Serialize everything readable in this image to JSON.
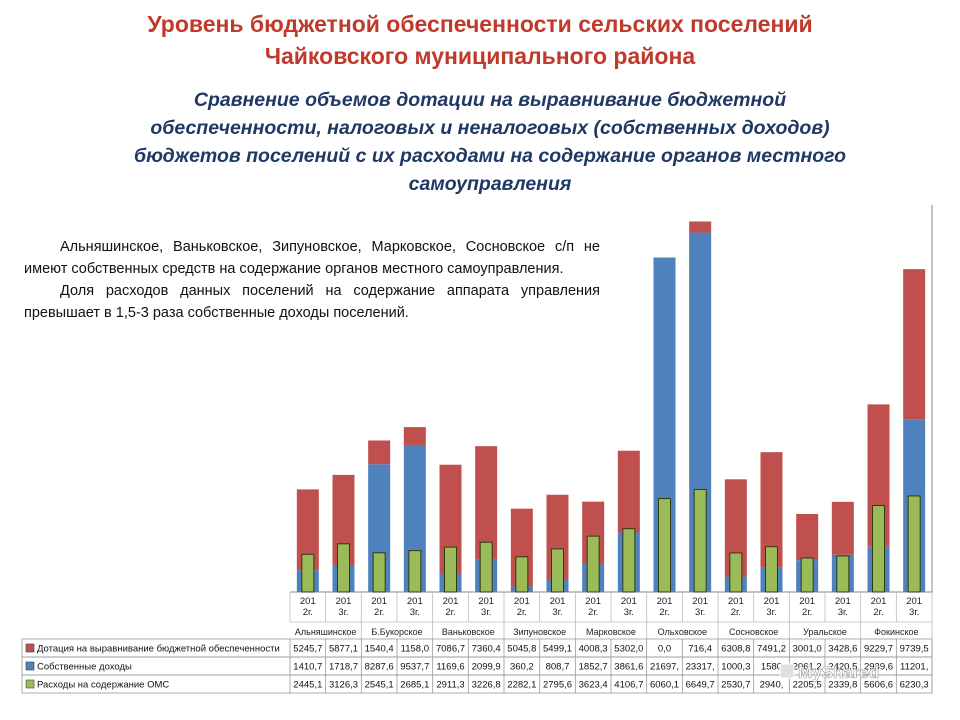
{
  "header": {
    "title_line1": "Уровень бюджетной обеспеченности сельских поселений",
    "title_line2": "Чайковского муниципального района",
    "subtitle_line1": "Сравнение объемов дотации на выравнивание бюджетной",
    "subtitle_line2": "обеспеченности, налоговых и неналоговых (собственных доходов)",
    "subtitle_line3": "бюджетов поселений с их расходами на содержание органов местного",
    "subtitle_line4": "самоуправления"
  },
  "note": {
    "paragraph1": "Альняшинское, Ваньковское, Зипуновское, Марковское, Сосновское с/п не имеют собственных средств на содержание органов местного самоуправления.",
    "paragraph2": "Доля расходов данных поселений на содержание аппарата управления превышает в 1,5-3 раза собственные доходы поселений."
  },
  "chart_data": {
    "type": "bar",
    "stacked_series": [
      "Дотация на выравнивание бюджетной обеспеченности",
      "Собственные доходы"
    ],
    "overlay_series": "Расходы на содержание ОМС",
    "period_labels": [
      "201 2г.",
      "201 3г.",
      "201 2г.",
      "201 3г.",
      "201 2г.",
      "201 3г.",
      "201 2г.",
      "201 3г.",
      "201 2г.",
      "201 3г.",
      "201 2г.",
      "201 3г.",
      "201 2г.",
      "201 3г.",
      "201 2г.",
      "201 3г.",
      "201 2г.",
      "201 3г."
    ],
    "groups": [
      "Альняшинское",
      "Б.Букорское",
      "Ваньковское",
      "Зипуновское",
      "Марковское",
      "Ольховское",
      "Сосновское",
      "Уральское",
      "Фокинское"
    ],
    "series": [
      {
        "name": "Дотация на выравнивание бюджетной обеспеченности",
        "color": "#c0504d",
        "values": [
          5245.7,
          5877.1,
          1540.4,
          1158.0,
          7086.7,
          7360.4,
          5045.8,
          5499.1,
          4008.3,
          5302.0,
          0.0,
          716.4,
          6308.8,
          7491.2,
          3001.0,
          3428.6,
          9229.7,
          9739.5
        ],
        "labels": [
          "5245,7",
          "5877,1",
          "1540,4",
          "1158,0",
          "7086,7",
          "7360,4",
          "5045,8",
          "5499,1",
          "4008,3",
          "5302,0",
          "0,0",
          "716,4",
          "6308,8",
          "7491,2",
          "3001,0",
          "3428,6",
          "9229,7",
          "9739,5"
        ]
      },
      {
        "name": "Собственные доходы",
        "color": "#4f81bd",
        "values": [
          1410.7,
          1718.7,
          8287.6,
          9537.7,
          1169.6,
          2099.9,
          360.2,
          808.7,
          1852.7,
          3861.6,
          21697,
          23317,
          1000.3,
          1580,
          2061,
          2420,
          2939.6,
          11201
        ],
        "labels": [
          "1410,7",
          "1718,7",
          "8287,6",
          "9537,7",
          "1169,6",
          "2099,9",
          "360,2",
          "808,7",
          "1852,7",
          "3861,6",
          "21697,",
          "23317,",
          "1000,3",
          "1580",
          "2061,2",
          "2420,5",
          "2939,6",
          "11201,"
        ]
      },
      {
        "name": "Расходы на содержание ОМС",
        "color": "#9bbb59",
        "values": [
          2445.1,
          3126.3,
          2545.1,
          2685.1,
          2911.3,
          3226.8,
          2282.1,
          2795.6,
          3623.4,
          4106.7,
          6060.1,
          6649.7,
          2530.7,
          2940,
          2205.5,
          2339.8,
          5606.6,
          6230.3
        ],
        "labels": [
          "2445,1",
          "3126,3",
          "2545,1",
          "2685,1",
          "2911,3",
          "3226,8",
          "2282,1",
          "2795,6",
          "3623,4",
          "4106,7",
          "6060,1",
          "6649,7",
          "2530,7",
          "2940,",
          "2205,5",
          "2339,8",
          "5606,6",
          "6230,3"
        ]
      }
    ],
    "ylim": [
      0,
      24000
    ],
    "legend": "data table below the chart",
    "grid": false
  },
  "watermark": "MyShared"
}
